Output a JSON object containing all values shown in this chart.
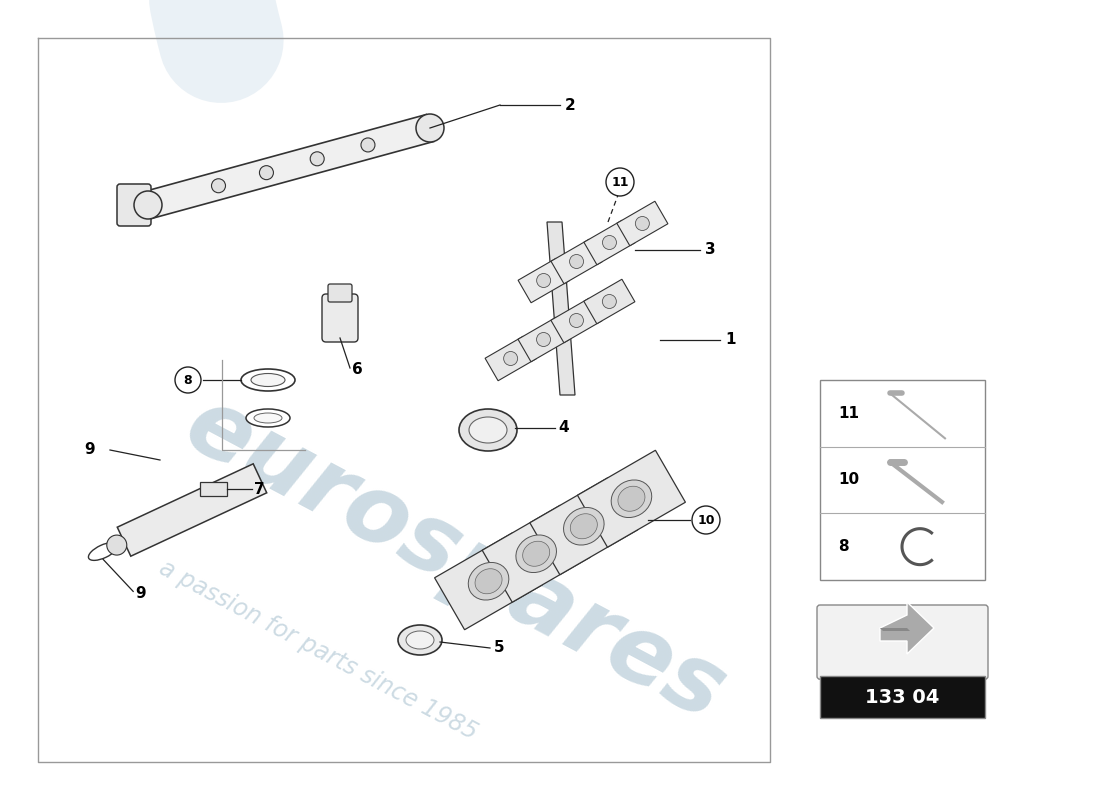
{
  "bg_color": "#ffffff",
  "watermark1": "eurospares",
  "watermark2": "a passion for parts since 1985",
  "wm_color": "#b8ccd8",
  "arc_color": "#dde8f0",
  "border_color": "#999999",
  "line_color": "#222222",
  "part_color": "#eeeeee",
  "part_edge": "#333333",
  "badge_text": "133 04",
  "badge_bg": "#111111",
  "badge_fg": "#ffffff",
  "legend_items": [
    {
      "num": "11",
      "type": "bolt_thin"
    },
    {
      "num": "10",
      "type": "bolt_thick"
    },
    {
      "num": "8",
      "type": "clip"
    }
  ]
}
